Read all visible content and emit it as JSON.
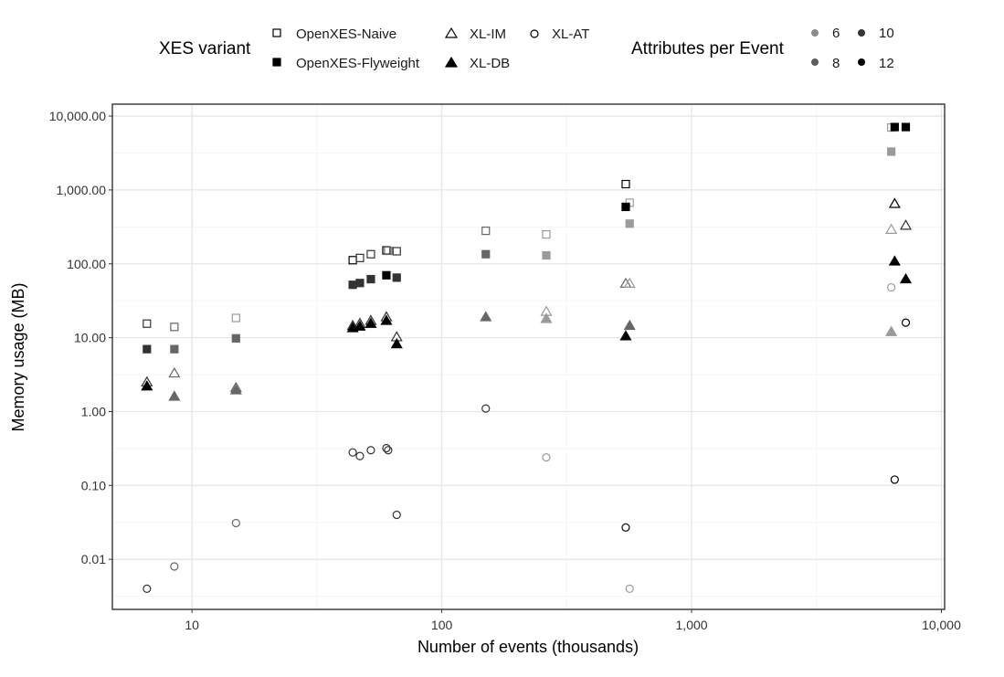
{
  "chart_data": {
    "type": "scatter",
    "title": "",
    "xlabel": "Number of events (thousands)",
    "ylabel": "Memory usage (MB)",
    "x_scale": "log",
    "y_scale": "log",
    "xlim": [
      4.8,
      10300
    ],
    "ylim": [
      0.0021,
      14500
    ],
    "x_ticks": [
      10,
      100,
      1000,
      10000
    ],
    "x_tick_labels": [
      "10",
      "100",
      "1,000",
      "10,000"
    ],
    "y_ticks": [
      0.01,
      0.1,
      1,
      10,
      100,
      1000,
      10000
    ],
    "y_tick_labels": [
      "0.01",
      "0.10",
      "1.00",
      "10.00",
      "100.00",
      "1,000.00",
      "10,000.00"
    ],
    "grid": true,
    "legends": [
      {
        "title": "XES variant",
        "entries": [
          {
            "label": "OpenXES-Naive",
            "shape": "square-open"
          },
          {
            "label": "OpenXES-Flyweight",
            "shape": "square-filled"
          },
          {
            "label": "XL-IM",
            "shape": "triangle-open"
          },
          {
            "label": "XL-DB",
            "shape": "triangle-filled"
          },
          {
            "label": "XL-AT",
            "shape": "circle-open"
          }
        ]
      },
      {
        "title": "Attributes per Event",
        "entries": [
          {
            "label": "6",
            "color": "#8c8c8c"
          },
          {
            "label": "8",
            "color": "#5f5f5f"
          },
          {
            "label": "10",
            "color": "#343434"
          },
          {
            "label": "12",
            "color": "#000000"
          }
        ]
      }
    ],
    "attribute_colors": {
      "6": "#9a9a9a",
      "8": "#666666",
      "10": "#333333",
      "12": "#000000"
    },
    "series": [
      {
        "name": "OpenXES-Naive",
        "shape": "square-open",
        "points": [
          {
            "x": 6.6,
            "y": 15.5,
            "attr": 10
          },
          {
            "x": 8.5,
            "y": 14,
            "attr": 8
          },
          {
            "x": 15,
            "y": 18.5,
            "attr": 6
          },
          {
            "x": 44,
            "y": 112,
            "attr": 12
          },
          {
            "x": 47,
            "y": 120,
            "attr": 10
          },
          {
            "x": 52,
            "y": 135,
            "attr": 10
          },
          {
            "x": 60,
            "y": 152,
            "attr": 12
          },
          {
            "x": 61,
            "y": 150,
            "attr": 8
          },
          {
            "x": 66,
            "y": 148,
            "attr": 10
          },
          {
            "x": 150,
            "y": 280,
            "attr": 8
          },
          {
            "x": 262,
            "y": 250,
            "attr": 6
          },
          {
            "x": 545,
            "y": 1200,
            "attr": 12
          },
          {
            "x": 565,
            "y": 670,
            "attr": 6
          },
          {
            "x": 6300,
            "y": 7000,
            "attr": 6
          }
        ]
      },
      {
        "name": "OpenXES-Flyweight",
        "shape": "square-filled",
        "points": [
          {
            "x": 6.6,
            "y": 7,
            "attr": 10
          },
          {
            "x": 8.5,
            "y": 7,
            "attr": 8
          },
          {
            "x": 15,
            "y": 9.8,
            "attr": 8
          },
          {
            "x": 44,
            "y": 52,
            "attr": 10
          },
          {
            "x": 47,
            "y": 55,
            "attr": 10
          },
          {
            "x": 52,
            "y": 62,
            "attr": 10
          },
          {
            "x": 60,
            "y": 70,
            "attr": 12
          },
          {
            "x": 66,
            "y": 65,
            "attr": 10
          },
          {
            "x": 150,
            "y": 135,
            "attr": 8
          },
          {
            "x": 262,
            "y": 130,
            "attr": 6
          },
          {
            "x": 545,
            "y": 590,
            "attr": 12
          },
          {
            "x": 565,
            "y": 350,
            "attr": 6
          },
          {
            "x": 6300,
            "y": 3300,
            "attr": 6
          },
          {
            "x": 6500,
            "y": 7100,
            "attr": 12
          },
          {
            "x": 7200,
            "y": 7100,
            "attr": 12
          }
        ]
      },
      {
        "name": "XL-IM",
        "shape": "triangle-open",
        "points": [
          {
            "x": 6.6,
            "y": 2.5,
            "attr": 10
          },
          {
            "x": 8.5,
            "y": 3.3,
            "attr": 8
          },
          {
            "x": 15,
            "y": 2.1,
            "attr": 8
          },
          {
            "x": 44,
            "y": 14.5,
            "attr": 10
          },
          {
            "x": 47,
            "y": 15.5,
            "attr": 10
          },
          {
            "x": 52,
            "y": 17,
            "attr": 10
          },
          {
            "x": 60,
            "y": 19,
            "attr": 10
          },
          {
            "x": 66,
            "y": 10.2,
            "attr": 10
          },
          {
            "x": 262,
            "y": 22.5,
            "attr": 6
          },
          {
            "x": 545,
            "y": 54,
            "attr": 8
          },
          {
            "x": 565,
            "y": 54,
            "attr": 6
          },
          {
            "x": 6300,
            "y": 290,
            "attr": 6
          },
          {
            "x": 6500,
            "y": 650,
            "attr": 12
          },
          {
            "x": 7200,
            "y": 330,
            "attr": 10
          }
        ]
      },
      {
        "name": "XL-DB",
        "shape": "triangle-filled",
        "points": [
          {
            "x": 6.6,
            "y": 2.2,
            "attr": 12
          },
          {
            "x": 8.5,
            "y": 1.6,
            "attr": 8
          },
          {
            "x": 15,
            "y": 1.95,
            "attr": 8
          },
          {
            "x": 44,
            "y": 13.5,
            "attr": 12
          },
          {
            "x": 47,
            "y": 14.2,
            "attr": 12
          },
          {
            "x": 52,
            "y": 15.5,
            "attr": 12
          },
          {
            "x": 60,
            "y": 17,
            "attr": 12
          },
          {
            "x": 66,
            "y": 8.2,
            "attr": 12
          },
          {
            "x": 150,
            "y": 19,
            "attr": 8
          },
          {
            "x": 262,
            "y": 18,
            "attr": 6
          },
          {
            "x": 545,
            "y": 10.5,
            "attr": 12
          },
          {
            "x": 565,
            "y": 14.5,
            "attr": 8
          },
          {
            "x": 6300,
            "y": 12,
            "attr": 6
          },
          {
            "x": 6500,
            "y": 108,
            "attr": 12
          },
          {
            "x": 7200,
            "y": 62,
            "attr": 12
          }
        ]
      },
      {
        "name": "XL-AT",
        "shape": "circle-open",
        "points": [
          {
            "x": 6.6,
            "y": 0.004,
            "attr": 10
          },
          {
            "x": 8.5,
            "y": 0.008,
            "attr": 8
          },
          {
            "x": 15,
            "y": 0.031,
            "attr": 8
          },
          {
            "x": 44,
            "y": 0.28,
            "attr": 10
          },
          {
            "x": 47,
            "y": 0.25,
            "attr": 10
          },
          {
            "x": 52,
            "y": 0.3,
            "attr": 10
          },
          {
            "x": 60,
            "y": 0.32,
            "attr": 10
          },
          {
            "x": 61,
            "y": 0.3,
            "attr": 10
          },
          {
            "x": 66,
            "y": 0.04,
            "attr": 10
          },
          {
            "x": 150,
            "y": 1.1,
            "attr": 10
          },
          {
            "x": 262,
            "y": 0.24,
            "attr": 6
          },
          {
            "x": 545,
            "y": 0.027,
            "attr": 12
          },
          {
            "x": 565,
            "y": 0.004,
            "attr": 6
          },
          {
            "x": 6300,
            "y": 48,
            "attr": 6
          },
          {
            "x": 6500,
            "y": 0.12,
            "attr": 12
          },
          {
            "x": 7200,
            "y": 16,
            "attr": 12
          }
        ]
      }
    ]
  }
}
